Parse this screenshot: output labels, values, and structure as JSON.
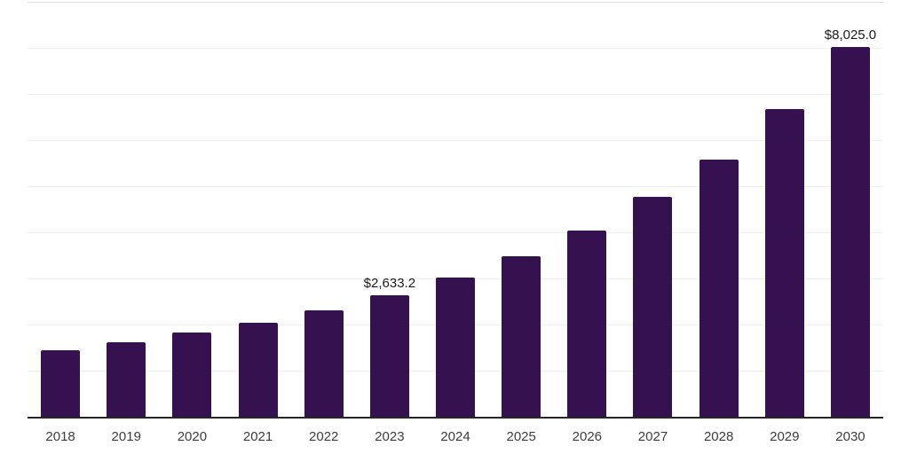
{
  "chart_data": {
    "type": "bar",
    "title": "",
    "xlabel": "",
    "ylabel": "",
    "categories": [
      "2018",
      "2019",
      "2020",
      "2021",
      "2022",
      "2023",
      "2024",
      "2025",
      "2026",
      "2027",
      "2028",
      "2029",
      "2030"
    ],
    "values": [
      1450,
      1625,
      1820,
      2040,
      2300,
      2633.2,
      3010,
      3480,
      4030,
      4760,
      5580,
      6670,
      8025
    ],
    "point_labels": [
      "",
      "",
      "",
      "",
      "",
      "$2,633.2",
      "",
      "",
      "",
      "",
      "",
      "",
      "$8,025.0"
    ],
    "ylim": [
      0,
      9000
    ],
    "gridline_step": 1000,
    "grid": true,
    "legend": false,
    "y_axis_labels_visible": false,
    "colors": {
      "bar": "#361150",
      "gridline": "#f1f1f1",
      "gridline_top": "#e2e2e2",
      "axis_line": "#262626",
      "value_label_text": "#1a1a1a",
      "tick_label_text": "#3d3d3d",
      "background": "#ffffff"
    }
  }
}
